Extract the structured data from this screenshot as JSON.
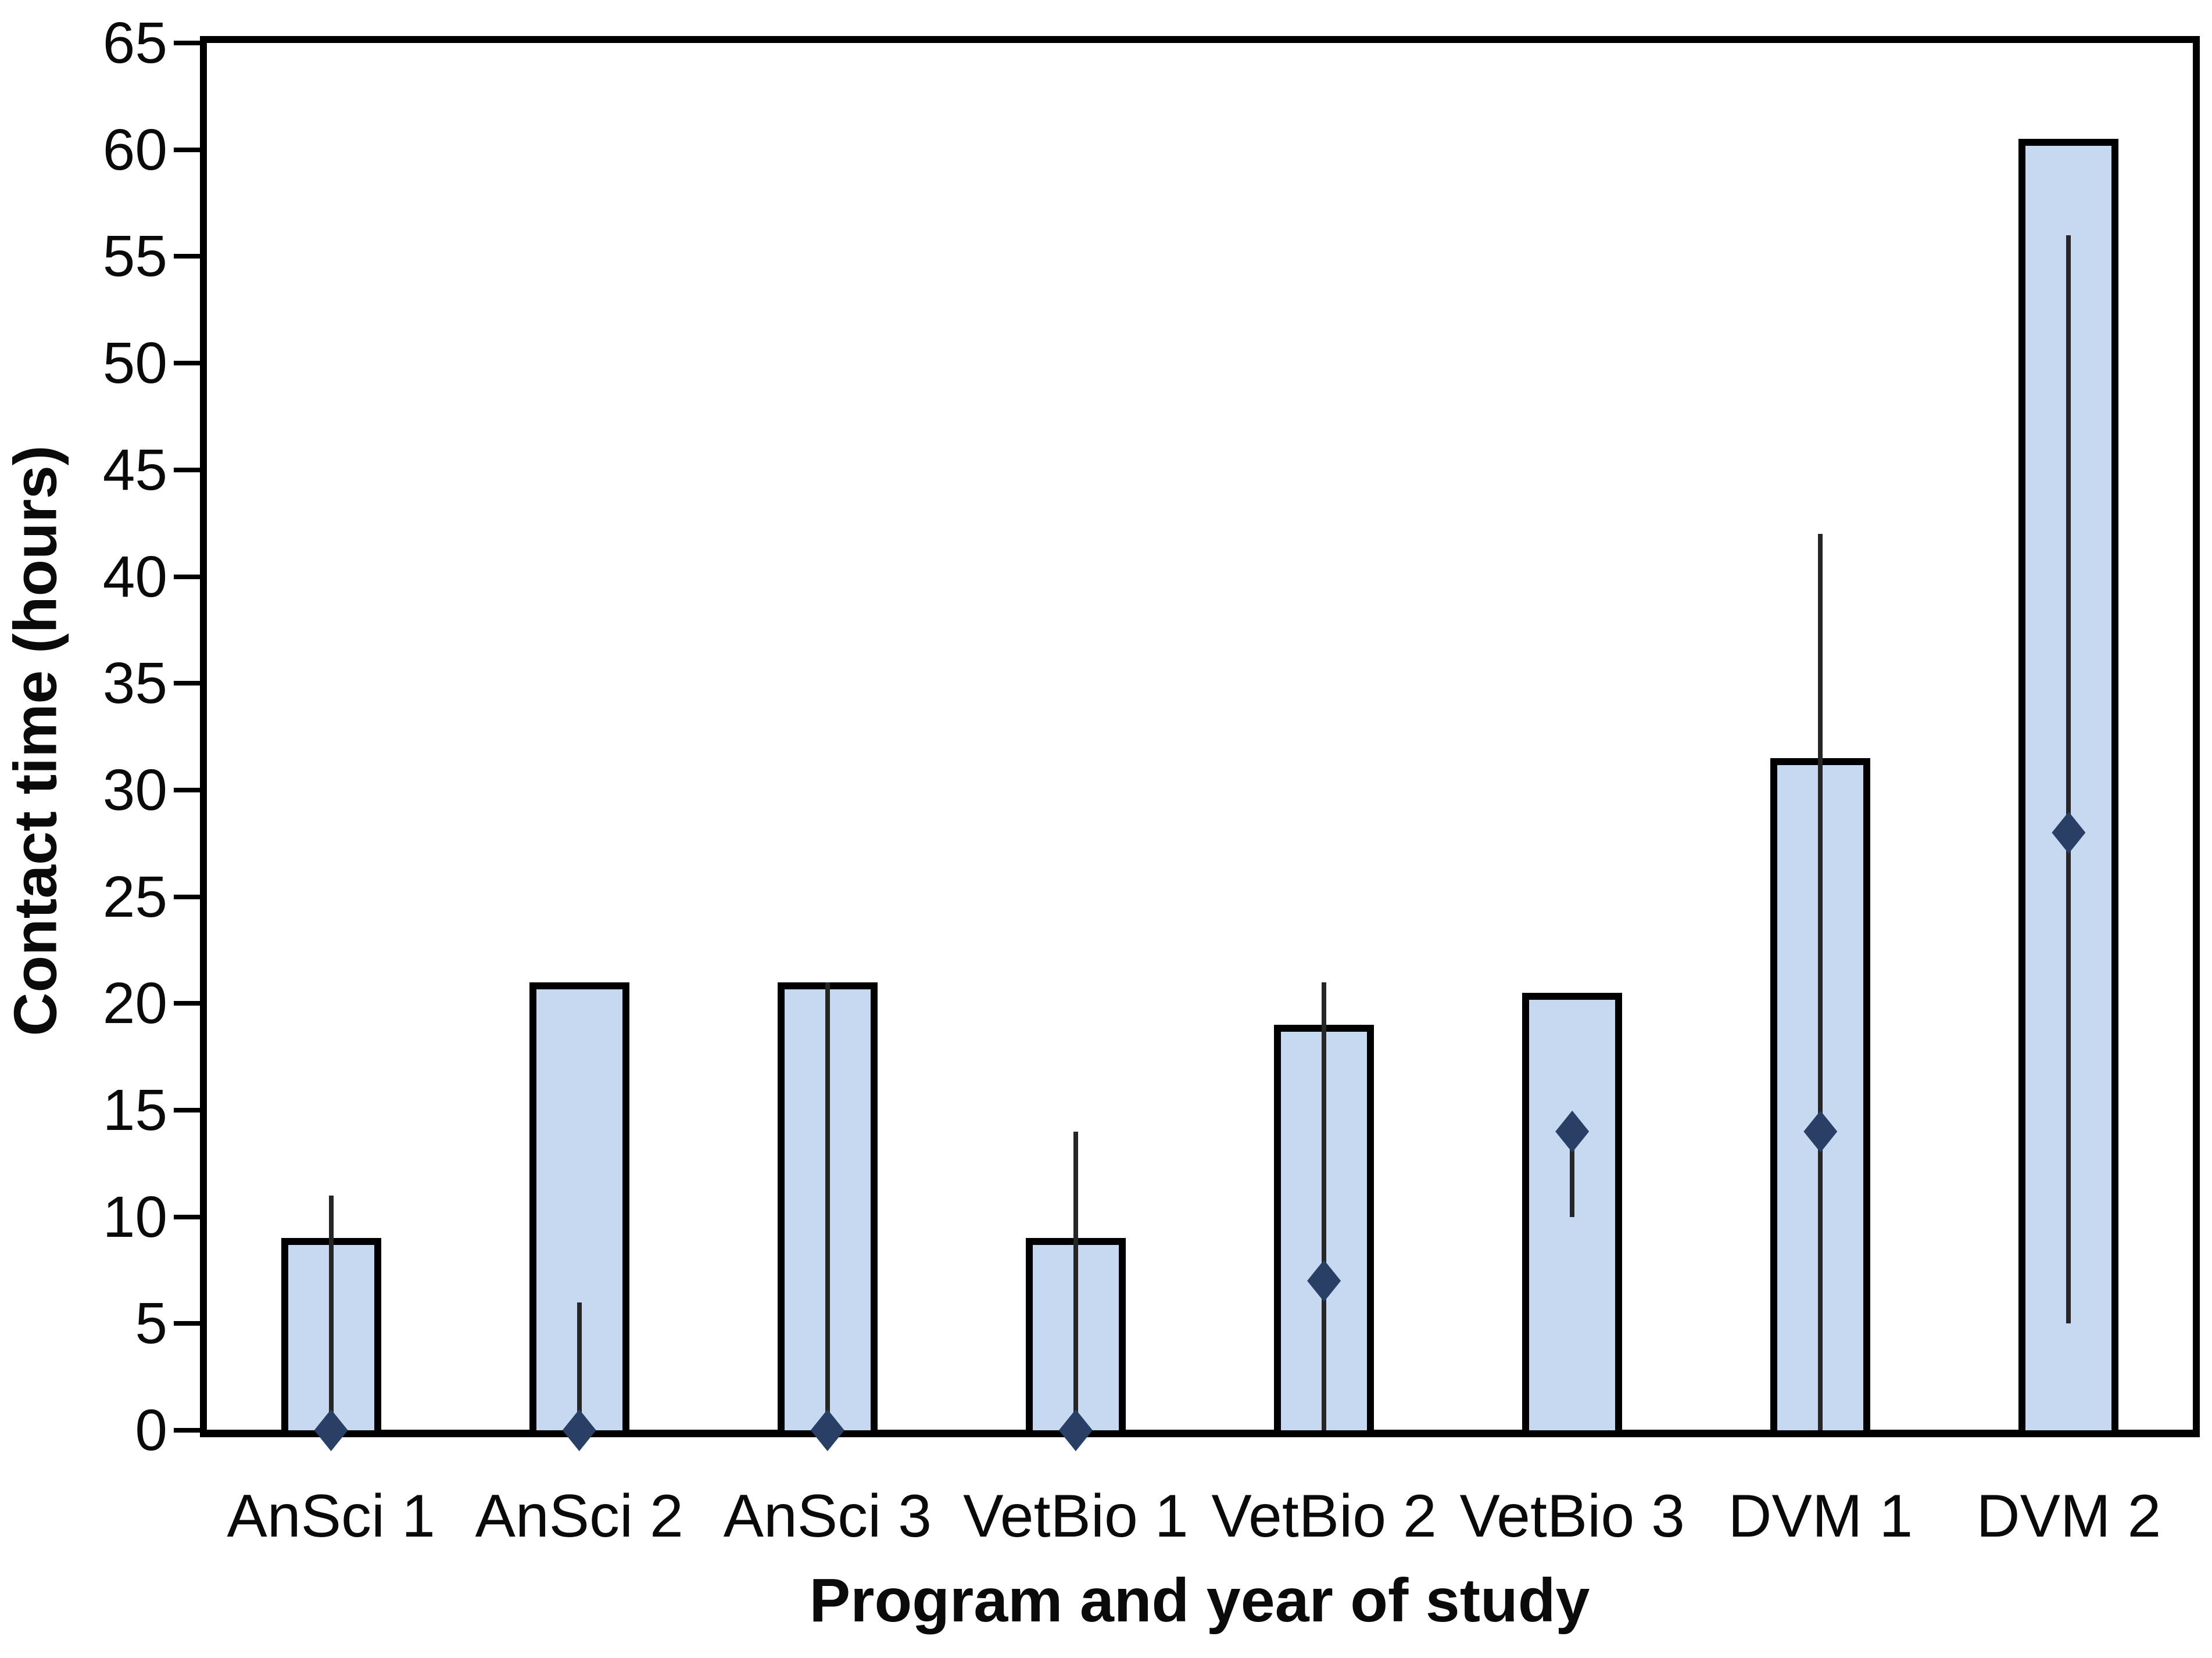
{
  "chart_data": {
    "type": "bar",
    "title": "",
    "xlabel": "Program and year of study",
    "ylabel": "Contact time (hours)",
    "ylim": [
      0,
      65
    ],
    "yticks": [
      0,
      5,
      10,
      15,
      20,
      25,
      30,
      35,
      40,
      45,
      50,
      55,
      60,
      65
    ],
    "grid": false,
    "legend_position": "none",
    "categories": [
      "AnSci 1",
      "AnSci 2",
      "AnSci 3",
      "VetBio 1",
      "VetBio 2",
      "VetBio 3",
      "DVM 1",
      "DVM 2"
    ],
    "series": [
      {
        "name": "contact-time-bars",
        "type": "bar",
        "values": [
          9,
          21,
          21,
          9,
          19,
          20.5,
          31.5,
          60.5
        ]
      },
      {
        "name": "diamond-markers",
        "type": "scatter",
        "values": [
          0,
          0,
          0,
          0,
          7,
          14,
          14,
          28
        ]
      },
      {
        "name": "range-lines",
        "type": "error-line",
        "ranges": [
          [
            0,
            11
          ],
          [
            0,
            6
          ],
          [
            0,
            21
          ],
          [
            0,
            14
          ],
          [
            0,
            21
          ],
          [
            10,
            14
          ],
          [
            0,
            42
          ],
          [
            5,
            56
          ]
        ]
      }
    ],
    "colors": {
      "bar_fill": "#c6d9f1",
      "bar_border": "#000000",
      "marker": "#2a3f66",
      "error_line": "#262626",
      "axis": "#000000",
      "background": "#ffffff"
    }
  }
}
